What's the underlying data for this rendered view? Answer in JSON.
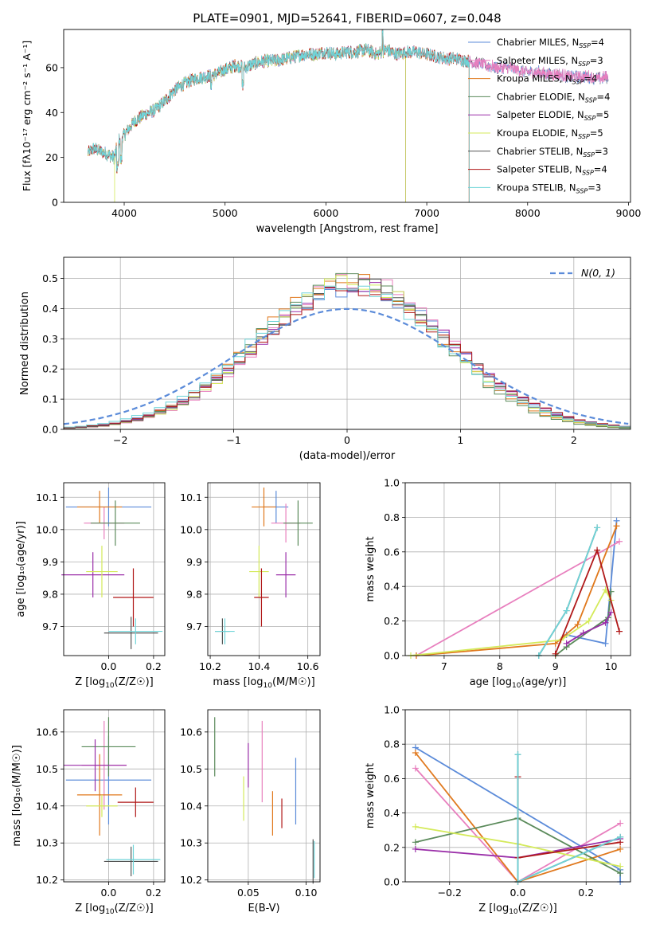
{
  "figure_title": "PLATE=0901, MJD=52641, FIBERID=0607, z=0.048",
  "model_colors": [
    "#5b8bd9",
    "#e87fbe",
    "#e0781c",
    "#5a8a5a",
    "#9a2ea8",
    "#d4ea5a",
    "#555555",
    "#b01818",
    "#6fd4d8"
  ],
  "chart_data": [
    {
      "id": "spectrum",
      "type": "line",
      "xlabel": "wavelength [Angstrom, rest frame]",
      "ylabel": "Flux [fλ10⁻¹⁷ erg cm⁻² s⁻¹ A⁻¹]",
      "xlim": [
        3400,
        9020
      ],
      "ylim": [
        0,
        77
      ],
      "xticks": [
        4000,
        5000,
        6000,
        7000,
        8000,
        9000
      ],
      "yticks": [
        0,
        20,
        40,
        60
      ],
      "grid": false,
      "legend_position": "top-right",
      "legend": [
        {
          "label": "Chabrier MILES, N",
          "sub": "SSP",
          "eq": "=4"
        },
        {
          "label": "Salpeter MILES, N",
          "sub": "SSP",
          "eq": "=3"
        },
        {
          "label": "Kroupa MILES, N",
          "sub": "SSP",
          "eq": "=4"
        },
        {
          "label": "Chabrier ELODIE, N",
          "sub": "SSP",
          "eq": "=4"
        },
        {
          "label": "Salpeter ELODIE, N",
          "sub": "SSP",
          "eq": "=5"
        },
        {
          "label": "Kroupa ELODIE, N",
          "sub": "SSP",
          "eq": "=5"
        },
        {
          "label": "Chabrier STELIB, N",
          "sub": "SSP",
          "eq": "=3"
        },
        {
          "label": "Salpeter STELIB, N",
          "sub": "SSP",
          "eq": "=4"
        },
        {
          "label": "Kroupa STELIB, N",
          "sub": "SSP",
          "eq": "=3"
        }
      ],
      "continuum": [
        [
          3640,
          22
        ],
        [
          3700,
          24
        ],
        [
          3800,
          22
        ],
        [
          3900,
          20
        ],
        [
          3950,
          28
        ],
        [
          4000,
          30
        ],
        [
          4100,
          36
        ],
        [
          4200,
          39
        ],
        [
          4300,
          41
        ],
        [
          4400,
          45
        ],
        [
          4500,
          50
        ],
        [
          4600,
          53
        ],
        [
          4700,
          55
        ],
        [
          4800,
          56
        ],
        [
          4900,
          57
        ],
        [
          5000,
          59
        ],
        [
          5100,
          61
        ],
        [
          5200,
          60
        ],
        [
          5300,
          62
        ],
        [
          5400,
          63
        ],
        [
          5500,
          63
        ],
        [
          5600,
          64
        ],
        [
          5700,
          65
        ],
        [
          5800,
          66
        ],
        [
          5900,
          66
        ],
        [
          6000,
          67
        ],
        [
          6100,
          66
        ],
        [
          6200,
          67
        ],
        [
          6300,
          67
        ],
        [
          6400,
          68
        ],
        [
          6500,
          66
        ],
        [
          6600,
          68
        ],
        [
          6700,
          66
        ],
        [
          6800,
          67
        ],
        [
          6900,
          67
        ],
        [
          7000,
          66
        ],
        [
          7100,
          65
        ],
        [
          7200,
          64
        ],
        [
          7300,
          64
        ],
        [
          7400,
          63
        ],
        [
          7500,
          62
        ],
        [
          7600,
          61
        ],
        [
          7700,
          60
        ],
        [
          7800,
          60
        ],
        [
          7900,
          59
        ],
        [
          8000,
          58
        ],
        [
          8100,
          58
        ],
        [
          8200,
          57
        ],
        [
          8300,
          57
        ],
        [
          8400,
          56
        ],
        [
          8500,
          56
        ],
        [
          8600,
          56
        ],
        [
          8700,
          55
        ],
        [
          8800,
          56
        ]
      ],
      "model_ranges": [
        [
          3640,
          8800
        ],
        [
          3640,
          8800
        ],
        [
          3640,
          7420
        ],
        [
          3640,
          6790
        ],
        [
          3640,
          6790
        ],
        [
          3640,
          6790
        ],
        [
          3640,
          8800
        ],
        [
          3640,
          7420
        ],
        [
          3640,
          7420
        ]
      ]
    },
    {
      "id": "residual_histogram",
      "type": "histogram",
      "xlabel": "(data-model)/error",
      "ylabel": "Normed distribution",
      "xlim": [
        -2.5,
        2.5
      ],
      "ylim": [
        0,
        0.57
      ],
      "xticks": [
        -2,
        -1,
        0,
        1,
        2
      ],
      "yticks": [
        0.0,
        0.1,
        0.2,
        0.3,
        0.4,
        0.5
      ],
      "grid": true,
      "bin_width": 0.1,
      "legend_position": "top-right",
      "gaussian_label": "N(0, 1)",
      "gaussian_color": "#5b8bd9"
    },
    {
      "id": "age_vs_Z",
      "type": "errorbar",
      "xlabel_pre": "Z [log",
      "xlabel_sub": "10",
      "xlabel_post": "(Z/Z☉)]",
      "ylabel": "age  [log₁₀(age/yr)]",
      "xlim": [
        -0.2,
        0.25
      ],
      "ylim": [
        9.61,
        10.145
      ],
      "xticks": [
        -0.0,
        0.2
      ],
      "xtick_labels": [
        "0.0",
        "0.2"
      ],
      "yticks": [
        9.7,
        9.8,
        9.9,
        10.0,
        10.1
      ],
      "grid": true,
      "points": [
        {
          "x": 0.0,
          "y": 10.07,
          "xerr": 0.19,
          "yerr": 0.06
        },
        {
          "x": -0.02,
          "y": 10.02,
          "xerr": 0.09,
          "yerr": 0.05
        },
        {
          "x": -0.04,
          "y": 10.07,
          "xerr": 0.1,
          "yerr": 0.05
        },
        {
          "x": 0.03,
          "y": 10.02,
          "xerr": 0.11,
          "yerr": 0.07
        },
        {
          "x": -0.07,
          "y": 9.86,
          "xerr": 0.14,
          "yerr": 0.07
        },
        {
          "x": -0.03,
          "y": 9.87,
          "xerr": 0.07,
          "yerr": 0.08
        },
        {
          "x": 0.1,
          "y": 9.68,
          "xerr": 0.12,
          "yerr": 0.05
        },
        {
          "x": 0.11,
          "y": 9.79,
          "xerr": 0.09,
          "yerr": 0.09
        },
        {
          "x": 0.12,
          "y": 9.685,
          "xerr": 0.12,
          "yerr": 0.04
        }
      ]
    },
    {
      "id": "age_vs_mass",
      "type": "errorbar",
      "xlabel_pre": "mass [log",
      "xlabel_sub": "10",
      "xlabel_post": "(M/M☉)]",
      "ylabel": "",
      "xlim": [
        10.19,
        10.65
      ],
      "ylim": [
        9.61,
        10.145
      ],
      "xticks": [
        10.2,
        10.4,
        10.6
      ],
      "xtick_labels": [
        "10.2",
        "10.4",
        "10.6"
      ],
      "yticks": [
        9.7,
        9.8,
        9.9,
        10.0,
        10.1
      ],
      "grid": true,
      "points": [
        {
          "x": 10.47,
          "y": 10.07,
          "xerr": 0.05,
          "yerr": 0.05
        },
        {
          "x": 10.51,
          "y": 10.02,
          "xerr": 0.06,
          "yerr": 0.06
        },
        {
          "x": 10.42,
          "y": 10.07,
          "xerr": 0.05,
          "yerr": 0.06
        },
        {
          "x": 10.56,
          "y": 10.02,
          "xerr": 0.06,
          "yerr": 0.07
        },
        {
          "x": 10.51,
          "y": 9.86,
          "xerr": 0.04,
          "yerr": 0.07
        },
        {
          "x": 10.4,
          "y": 9.87,
          "xerr": 0.04,
          "yerr": 0.08
        },
        {
          "x": 10.25,
          "y": 9.685,
          "xerr": 0.03,
          "yerr": 0.04
        },
        {
          "x": 10.41,
          "y": 9.79,
          "xerr": 0.03,
          "yerr": 0.09
        },
        {
          "x": 10.26,
          "y": 9.685,
          "xerr": 0.04,
          "yerr": 0.04
        }
      ]
    },
    {
      "id": "mass_weight_vs_age",
      "type": "line",
      "xlabel_pre": "age  [log",
      "xlabel_sub": "10",
      "xlabel_post": "(age/yr)]",
      "ylabel": "mass weight",
      "xlim": [
        6.3,
        10.35
      ],
      "ylim": [
        0,
        1.0
      ],
      "xticks": [
        7,
        8,
        9,
        10
      ],
      "yticks": [
        0.0,
        0.2,
        0.4,
        0.6,
        0.8,
        1.0
      ],
      "grid": true,
      "series": [
        {
          "x": [
            9.2,
            9.9,
            10.1
          ],
          "y": [
            0.12,
            0.07,
            0.78
          ]
        },
        {
          "x": [
            6.5,
            10.15
          ],
          "y": [
            0.0,
            0.66
          ]
        },
        {
          "x": [
            6.5,
            9.0,
            9.4,
            10.1
          ],
          "y": [
            0.0,
            0.07,
            0.18,
            0.75
          ]
        },
        {
          "x": [
            9.0,
            9.2,
            9.95,
            10.0
          ],
          "y": [
            0.0,
            0.05,
            0.22,
            0.37
          ]
        },
        {
          "x": [
            9.2,
            9.5,
            9.9,
            10.0
          ],
          "y": [
            0.07,
            0.13,
            0.19,
            0.25
          ]
        },
        {
          "x": [
            6.4,
            9.1,
            9.6,
            9.9,
            10.0
          ],
          "y": [
            0.0,
            0.09,
            0.2,
            0.38,
            0.32
          ]
        },
        {
          "x": [
            8.7,
            9.2,
            9.75
          ],
          "y": [
            0.0,
            0.26,
            0.74
          ]
        },
        {
          "x": [
            9.0,
            9.75,
            10.15
          ],
          "y": [
            0.01,
            0.61,
            0.14
          ]
        },
        {
          "x": [
            8.7,
            9.2,
            9.75
          ],
          "y": [
            0.0,
            0.26,
            0.74
          ]
        }
      ]
    },
    {
      "id": "mass_vs_Z",
      "type": "errorbar",
      "xlabel_pre": "Z [log",
      "xlabel_sub": "10",
      "xlabel_post": "(Z/Z☉)]",
      "ylabel": "mass [log₁₀(M/M☉)]",
      "xlim": [
        -0.2,
        0.25
      ],
      "ylim": [
        10.195,
        10.66
      ],
      "xticks": [
        -0.0,
        0.2
      ],
      "xtick_labels": [
        "0.0",
        "0.2"
      ],
      "yticks": [
        10.2,
        10.3,
        10.4,
        10.5,
        10.6
      ],
      "grid": true,
      "points": [
        {
          "x": 0.0,
          "y": 10.47,
          "xerr": 0.19,
          "yerr": 0.12
        },
        {
          "x": -0.02,
          "y": 10.51,
          "xerr": 0.1,
          "yerr": 0.12
        },
        {
          "x": -0.04,
          "y": 10.43,
          "xerr": 0.1,
          "yerr": 0.11
        },
        {
          "x": 0.0,
          "y": 10.56,
          "xerr": 0.12,
          "yerr": 0.08
        },
        {
          "x": -0.06,
          "y": 10.51,
          "xerr": 0.14,
          "yerr": 0.07
        },
        {
          "x": -0.03,
          "y": 10.4,
          "xerr": 0.07,
          "yerr": 0.03
        },
        {
          "x": 0.1,
          "y": 10.25,
          "xerr": 0.12,
          "yerr": 0.04
        },
        {
          "x": 0.12,
          "y": 10.41,
          "xerr": 0.08,
          "yerr": 0.04
        },
        {
          "x": 0.11,
          "y": 10.255,
          "xerr": 0.12,
          "yerr": 0.04
        }
      ]
    },
    {
      "id": "mass_vs_ebv",
      "type": "errorbar",
      "xlabel": "E(B-V)",
      "ylabel": "",
      "xlim": [
        0.015,
        0.112
      ],
      "ylim": [
        10.195,
        10.66
      ],
      "xticks": [
        0.05,
        0.1
      ],
      "xtick_labels": [
        "0.05",
        "0.10"
      ],
      "yticks": [
        10.2,
        10.3,
        10.4,
        10.5,
        10.6
      ],
      "grid": true,
      "points": [
        {
          "x": 0.091,
          "y": 10.44,
          "xerr": 0.0,
          "yerr": 0.09
        },
        {
          "x": 0.062,
          "y": 10.52,
          "xerr": 0.0,
          "yerr": 0.11
        },
        {
          "x": 0.071,
          "y": 10.38,
          "xerr": 0.0,
          "yerr": 0.06
        },
        {
          "x": 0.021,
          "y": 10.56,
          "xerr": 0.0,
          "yerr": 0.08
        },
        {
          "x": 0.05,
          "y": 10.51,
          "xerr": 0.0,
          "yerr": 0.06
        },
        {
          "x": 0.046,
          "y": 10.42,
          "xerr": 0.0,
          "yerr": 0.06
        },
        {
          "x": 0.106,
          "y": 10.25,
          "xerr": 0.0,
          "yerr": 0.06
        },
        {
          "x": 0.079,
          "y": 10.38,
          "xerr": 0.0,
          "yerr": 0.04
        },
        {
          "x": 0.107,
          "y": 10.255,
          "xerr": 0.0,
          "yerr": 0.05
        }
      ]
    },
    {
      "id": "mass_weight_vs_Z",
      "type": "line",
      "xlabel_pre": "Z [log",
      "xlabel_sub": "10",
      "xlabel_post": "(Z/Z☉)]",
      "ylabel": "mass weight",
      "xlim": [
        -0.33,
        0.33
      ],
      "ylim": [
        0,
        1.0
      ],
      "xticks": [
        -0.2,
        0.0,
        0.2
      ],
      "xtick_labels": [
        "−0.2",
        "0.0",
        "0.2"
      ],
      "yticks": [
        0.0,
        0.2,
        0.4,
        0.6,
        0.8,
        1.0
      ],
      "grid": true,
      "series": [
        {
          "x": [
            -0.3,
            0.3,
            0.3
          ],
          "y": [
            0.78,
            0.07,
            0.0
          ]
        },
        {
          "x": [
            -0.3,
            0.0,
            0.3
          ],
          "y": [
            0.66,
            0.0,
            0.34
          ]
        },
        {
          "x": [
            -0.3,
            0.0,
            0.3
          ],
          "y": [
            0.75,
            0.0,
            0.19
          ]
        },
        {
          "x": [
            -0.3,
            0.0,
            0.3
          ],
          "y": [
            0.23,
            0.37,
            0.05
          ]
        },
        {
          "x": [
            -0.3,
            0.0,
            0.3
          ],
          "y": [
            0.19,
            0.14,
            0.25
          ]
        },
        {
          "x": [
            -0.3,
            0.0,
            0.3
          ],
          "y": [
            0.32,
            0.22,
            0.09
          ]
        },
        {
          "x": [
            0.0,
            0.0,
            0.3
          ],
          "y": [
            0.74,
            0.0,
            0.26
          ]
        },
        {
          "x": [
            0.0,
            0.0,
            0.3
          ],
          "y": [
            0.61,
            0.14,
            0.23
          ]
        },
        {
          "x": [
            0.0,
            0.0,
            0.3
          ],
          "y": [
            0.74,
            0.0,
            0.26
          ]
        }
      ]
    }
  ]
}
